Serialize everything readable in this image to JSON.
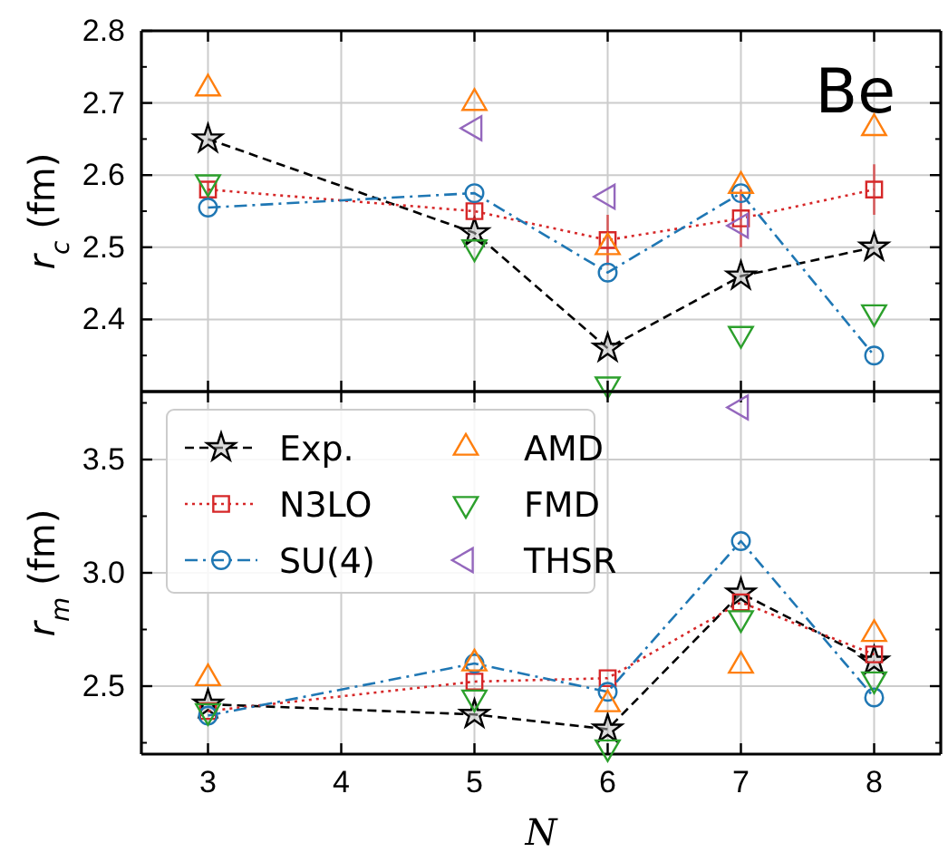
{
  "chart_data": [
    {
      "type": "line",
      "ylabel": "r$_{c}$ (fm)",
      "x": [
        3,
        5,
        6,
        7,
        8
      ],
      "xlim": [
        2.5,
        8.5
      ],
      "xticks": [
        3,
        4,
        5,
        6,
        7,
        8
      ],
      "ylim": [
        2.3,
        2.8
      ],
      "yticks": [
        2.4,
        2.5,
        2.6,
        2.7,
        2.8
      ],
      "grid": true,
      "tick_labels": "y",
      "annotations": [
        "Be"
      ],
      "series": [
        {
          "color": "#000000",
          "marker": "star",
          "line_style": "dashed",
          "values": [
            2.65,
            2.52,
            2.36,
            2.46,
            2.5
          ]
        },
        {
          "color": "#d62728",
          "marker": "square",
          "line_style": "dotted",
          "values": [
            2.58,
            2.55,
            2.51,
            2.54,
            2.58
          ],
          "errors": [
            0.01,
            0.01,
            0.035,
            0.04,
            0.035
          ]
        },
        {
          "color": "#1f77b4",
          "marker": "circle",
          "line_style": "dashdot",
          "values": [
            2.555,
            2.575,
            2.465,
            2.575,
            2.35
          ]
        },
        {
          "type": "scatter",
          "color": "#ff7f0e",
          "marker": "triangle",
          "values": [
            2.72,
            2.7,
            2.5,
            2.585,
            2.665
          ]
        },
        {
          "type": "scatter",
          "color": "#2ca02c",
          "marker": "triangle-down",
          "values": [
            2.59,
            2.5,
            2.31,
            2.38,
            2.41
          ]
        },
        {
          "type": "scatter",
          "color": "#9467bd",
          "marker": "triangle-left",
          "values": [
            null,
            2.665,
            2.57,
            2.53,
            null
          ]
        }
      ]
    },
    {
      "type": "line",
      "ylabel": "r$_{m}$ (fm)",
      "xlabel": "N",
      "x": [
        3,
        5,
        6,
        7,
        8
      ],
      "xlim": [
        2.5,
        8.5
      ],
      "xticks": [
        3,
        4,
        5,
        6,
        7,
        8
      ],
      "ylim": [
        2.2,
        3.8
      ],
      "yticks": [
        {
          "value": 2.5,
          "label": "2.5"
        },
        {
          "value": 3.0,
          "label": "3.0"
        },
        {
          "value": 3.5,
          "label": "3.5"
        }
      ],
      "grid": true,
      "legend": "top left",
      "series": [
        {
          "name": "Exp.",
          "color": "#000000",
          "marker": "star",
          "line_style": "dashed",
          "values": [
            2.42,
            2.375,
            2.31,
            2.91,
            2.61
          ]
        },
        {
          "name": "N3LO",
          "color": "#d62728",
          "marker": "square",
          "line_style": "dotted",
          "values": [
            2.39,
            2.52,
            2.535,
            2.87,
            2.64
          ]
        },
        {
          "name": "SU(4)",
          "color": "#1f77b4",
          "marker": "circle",
          "line_style": "dashdot",
          "values": [
            2.37,
            2.6,
            2.475,
            3.14,
            2.45
          ]
        },
        {
          "name": "AMD",
          "type": "scatter",
          "color": "#ff7f0e",
          "marker": "triangle",
          "values": [
            2.535,
            2.6,
            2.42,
            2.59,
            2.73
          ]
        },
        {
          "name": "FMD",
          "type": "scatter",
          "color": "#2ca02c",
          "marker": "triangle-down",
          "values": [
            2.39,
            2.45,
            2.23,
            2.8,
            2.53
          ]
        },
        {
          "name": "THSR",
          "type": "scatter",
          "color": "#9467bd",
          "marker": "triangle-left",
          "values": [
            null,
            null,
            null,
            3.73,
            null
          ]
        }
      ]
    }
  ]
}
